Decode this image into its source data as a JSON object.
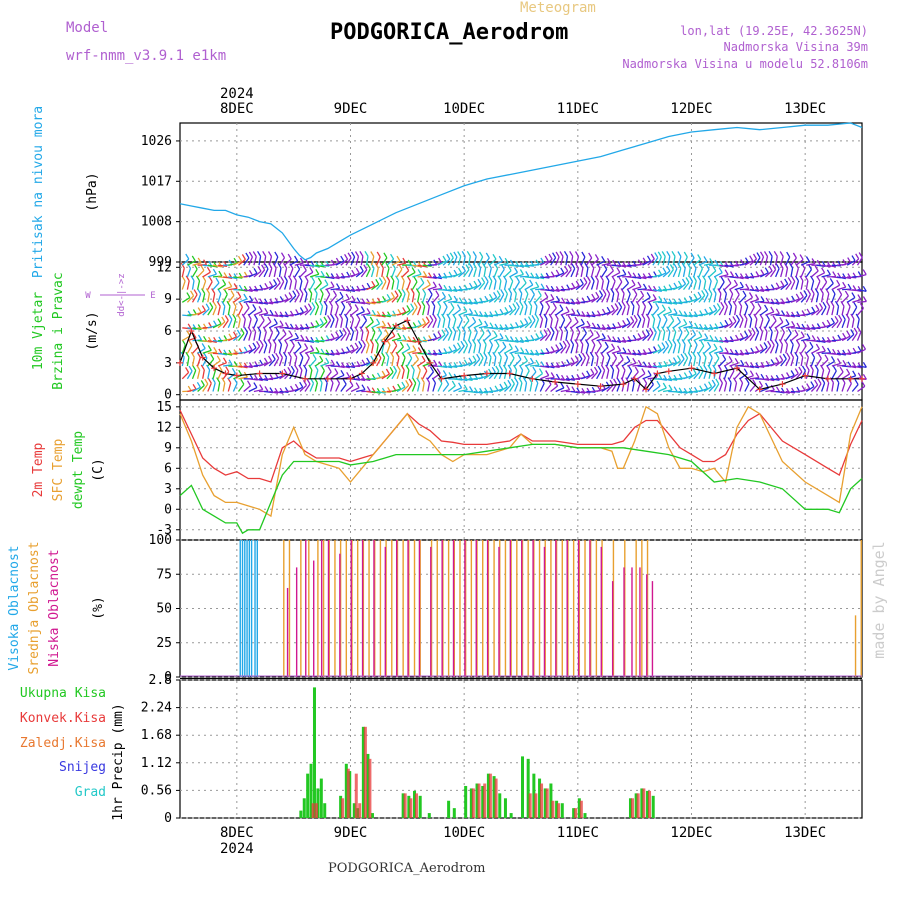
{
  "header": {
    "model_label": "Model",
    "model_value": "wrf-nmm_v3.9.1 e1km",
    "meteogram_label": "Meteogram",
    "station_title": "PODGORICA_Aerodrom",
    "lonlat": "lon,lat (19.25E, 42.3625N)",
    "elevation": "Nadmorska Visina 39m",
    "model_elevation": "Nadmorska Visina u modelu 52.8106m",
    "footer_station": "PODGORICA_Aerodrom",
    "signature": "made by Angel",
    "year_top": "2024",
    "year_bottom": "2024"
  },
  "colors": {
    "pressure": "#22a8e8",
    "temp2m": "#e83a3a",
    "sfc": "#e8a030",
    "dewpt": "#22c822",
    "high_cloud": "#22a8e8",
    "mid_cloud": "#e8a030",
    "low_cloud": "#d01890",
    "total_precip": "#22c822",
    "conv_precip": "#e83a3a",
    "frozen": "#e87830",
    "snow": "#3838e0",
    "grad": "#22c8c8",
    "wind_purple": "#8a22c8",
    "wind_blue": "#2828d8",
    "grid": "#999999"
  },
  "chart_data": [
    {
      "type": "line",
      "panel": "pressure",
      "ylabel_lines": [
        "Pritisak na nivou mora",
        "(hPa)"
      ],
      "x_ticks": [
        "8DEC",
        "9DEC",
        "10DEC",
        "11DEC",
        "12DEC",
        "13DEC"
      ],
      "yticks": [
        999,
        1008,
        1017,
        1026
      ],
      "ylim": [
        999,
        1030
      ],
      "x_range_days": [
        7.5,
        13.5
      ],
      "series": [
        {
          "x": [
            7.5,
            7.6,
            7.7,
            7.8,
            7.9,
            8.0,
            8.1,
            8.2,
            8.3,
            8.4,
            8.5,
            8.55,
            8.6,
            8.65,
            8.7,
            8.8,
            8.9,
            9.0,
            9.2,
            9.4,
            9.6,
            9.8,
            10.0,
            10.2,
            10.4,
            10.6,
            10.8,
            11.0,
            11.2,
            11.4,
            11.6,
            11.8,
            12.0,
            12.2,
            12.4,
            12.6,
            12.8,
            13.0,
            13.2,
            13.4,
            13.5
          ],
          "y": [
            1012,
            1011.5,
            1011,
            1010.5,
            1010.5,
            1009.5,
            1009,
            1008,
            1007.5,
            1005.5,
            1002,
            1000.5,
            999.5,
            1000,
            1001,
            1002,
            1003.5,
            1005,
            1007.5,
            1010,
            1012,
            1014,
            1016,
            1017.5,
            1018.5,
            1019.5,
            1020.5,
            1021.5,
            1022.5,
            1024,
            1025.5,
            1027,
            1028,
            1028.5,
            1029,
            1028.5,
            1029,
            1029.5,
            1029.5,
            1030,
            1029
          ]
        }
      ]
    },
    {
      "type": "scatter",
      "panel": "wind",
      "ylabel_lines": [
        "10m Vjetar",
        "Brzina i Pravac",
        "(m/s)"
      ],
      "compass": {
        "w": "W",
        "e": "E",
        "n": "N",
        "s": "S",
        "axis_note": "dd<-|->z"
      },
      "yticks": [
        0,
        3,
        6,
        9,
        12
      ],
      "ylim": [
        -0.5,
        12.5
      ],
      "speed_series": {
        "x": [
          7.5,
          7.6,
          7.7,
          7.8,
          7.9,
          8.0,
          8.2,
          8.4,
          8.6,
          8.8,
          9.0,
          9.1,
          9.2,
          9.3,
          9.4,
          9.5,
          9.6,
          9.7,
          9.8,
          10.0,
          10.2,
          10.4,
          10.6,
          10.8,
          11.0,
          11.2,
          11.4,
          11.5,
          11.6,
          11.7,
          11.8,
          12.0,
          12.2,
          12.4,
          12.6,
          12.8,
          13.0,
          13.2,
          13.4,
          13.5
        ],
        "y": [
          3,
          6,
          3.5,
          2.5,
          2,
          1.8,
          2,
          2,
          1.5,
          1.5,
          1.5,
          2,
          3,
          5,
          6.5,
          7,
          5,
          3,
          1.5,
          1.8,
          2,
          2,
          1.5,
          1.2,
          1,
          0.8,
          1,
          1.5,
          0.5,
          2,
          2.2,
          2.5,
          2,
          2.5,
          0.5,
          1,
          1.8,
          1.5,
          1.5,
          1.5
        ]
      }
    },
    {
      "type": "line",
      "panel": "temperature",
      "ylabel_lines": [
        "2m Temp",
        "SFC Temp",
        "dewpt Temp",
        "(C)"
      ],
      "yticks": [
        -3,
        0,
        3,
        6,
        9,
        12,
        15
      ],
      "ylim": [
        -4.5,
        16
      ],
      "series": [
        {
          "name": "2m Temp",
          "x": [
            7.5,
            7.6,
            7.7,
            7.8,
            7.9,
            8.0,
            8.1,
            8.2,
            8.3,
            8.4,
            8.5,
            8.6,
            8.7,
            8.8,
            8.9,
            9.0,
            9.1,
            9.2,
            9.3,
            9.4,
            9.5,
            9.6,
            9.7,
            9.8,
            9.9,
            10.0,
            10.2,
            10.4,
            10.5,
            10.6,
            10.8,
            11.0,
            11.2,
            11.3,
            11.4,
            11.5,
            11.6,
            11.7,
            11.8,
            11.9,
            12.0,
            12.1,
            12.2,
            12.3,
            12.4,
            12.5,
            12.6,
            12.8,
            13.0,
            13.2,
            13.3,
            13.4,
            13.5
          ],
          "y": [
            14.5,
            11,
            7.5,
            6,
            5,
            5.5,
            4.5,
            4.5,
            4,
            9,
            10,
            8.5,
            7.5,
            7.5,
            7.5,
            7,
            7.5,
            8,
            10,
            12,
            14,
            12.5,
            11.5,
            10,
            9.8,
            9.5,
            9.5,
            10,
            11,
            10,
            10,
            9.5,
            9.5,
            9.5,
            10,
            12,
            13,
            13,
            11,
            9,
            8,
            7,
            7,
            8,
            11,
            13,
            14,
            10,
            8,
            6,
            5,
            9.5,
            13
          ]
        },
        {
          "name": "SFC Temp",
          "x": [
            7.5,
            7.6,
            7.7,
            7.8,
            7.9,
            8.0,
            8.1,
            8.2,
            8.3,
            8.4,
            8.5,
            8.6,
            8.7,
            8.8,
            8.9,
            9.0,
            9.1,
            9.2,
            9.3,
            9.4,
            9.5,
            9.6,
            9.7,
            9.8,
            9.9,
            10.0,
            10.2,
            10.4,
            10.5,
            10.6,
            10.8,
            11.0,
            11.2,
            11.3,
            11.35,
            11.4,
            11.5,
            11.6,
            11.7,
            11.8,
            11.9,
            12.0,
            12.1,
            12.2,
            12.3,
            12.4,
            12.5,
            12.6,
            12.8,
            13.0,
            13.2,
            13.3,
            13.4,
            13.5
          ],
          "y": [
            14,
            10,
            5,
            2,
            1,
            1,
            0.5,
            0,
            -1,
            8,
            12,
            8,
            7,
            6.5,
            6,
            4,
            6,
            8,
            10,
            12,
            14,
            11,
            10,
            8,
            7,
            8,
            8,
            9,
            11,
            9.5,
            9.5,
            9,
            9,
            8.5,
            6,
            6,
            10,
            15,
            14,
            9,
            6,
            6,
            5.5,
            6,
            4,
            12,
            15,
            14,
            7,
            4,
            2,
            1,
            11,
            15
          ]
        },
        {
          "name": "dewpt Temp",
          "x": [
            7.5,
            7.6,
            7.7,
            7.8,
            7.9,
            8.0,
            8.05,
            8.1,
            8.2,
            8.3,
            8.4,
            8.5,
            8.6,
            8.7,
            8.8,
            8.9,
            9.0,
            9.2,
            9.4,
            9.6,
            9.8,
            10.0,
            10.2,
            10.4,
            10.6,
            10.8,
            11.0,
            11.2,
            11.4,
            11.6,
            11.8,
            12.0,
            12.2,
            12.4,
            12.6,
            12.8,
            13.0,
            13.2,
            13.3,
            13.4,
            13.5
          ],
          "y": [
            2,
            3.5,
            0,
            -1,
            -2,
            -2,
            -3.5,
            -3,
            -3,
            1,
            5,
            7,
            7,
            7,
            7,
            7,
            6.5,
            7,
            8,
            8,
            8,
            8,
            8.5,
            9,
            9.5,
            9.5,
            9,
            9,
            9,
            8.5,
            8,
            7,
            4,
            4.5,
            4,
            3,
            0,
            0,
            -0.5,
            3,
            4.5
          ]
        }
      ]
    },
    {
      "type": "bar",
      "panel": "clouds",
      "ylabel_lines": [
        "Visoka Oblacnost",
        "Srednja Oblacnost",
        "Niska Oblacnost",
        "(%)"
      ],
      "yticks": [
        0,
        25,
        50,
        75,
        100
      ],
      "ylim": [
        0,
        100
      ],
      "series": [
        {
          "name": "Visoka Oblacnost",
          "x": [
            8.03,
            8.05,
            8.07,
            8.09,
            8.11,
            8.13,
            8.16,
            8.18
          ],
          "values": [
            100,
            100,
            100,
            100,
            100,
            100,
            100,
            100
          ]
        },
        {
          "name": "Srednja Oblacnost",
          "x": [
            8.4,
            8.45,
            8.55,
            8.62,
            8.7,
            8.75,
            8.8,
            8.85,
            8.9,
            8.95,
            9.0,
            9.05,
            9.1,
            9.15,
            9.2,
            9.25,
            9.3,
            9.35,
            9.4,
            9.45,
            9.5,
            9.55,
            9.6,
            9.7,
            9.75,
            9.8,
            9.85,
            9.9,
            9.95,
            10.0,
            10.05,
            10.1,
            10.15,
            10.2,
            10.25,
            10.3,
            10.35,
            10.4,
            10.45,
            10.5,
            10.55,
            10.6,
            10.65,
            10.7,
            10.75,
            10.8,
            10.85,
            10.9,
            10.95,
            11.0,
            11.05,
            11.1,
            11.15,
            11.2,
            11.3,
            11.4,
            11.5,
            11.55,
            11.6,
            13.43,
            13.48
          ],
          "values": [
            100,
            100,
            100,
            100,
            100,
            100,
            100,
            100,
            100,
            100,
            100,
            100,
            100,
            100,
            100,
            100,
            100,
            100,
            100,
            100,
            100,
            100,
            100,
            100,
            100,
            100,
            100,
            100,
            100,
            100,
            100,
            100,
            100,
            100,
            100,
            100,
            100,
            100,
            100,
            100,
            100,
            100,
            100,
            100,
            100,
            100,
            100,
            100,
            100,
            100,
            100,
            100,
            100,
            100,
            100,
            100,
            100,
            100,
            100,
            45,
            100
          ]
        },
        {
          "name": "Niska Oblacnost",
          "x": [
            8.42,
            8.5,
            8.58,
            8.65,
            8.72,
            8.78,
            8.88,
            8.98,
            9.08,
            9.18,
            9.28,
            9.38,
            9.48,
            9.58,
            9.68,
            9.78,
            9.88,
            9.98,
            10.08,
            10.18,
            10.28,
            10.38,
            10.48,
            10.58,
            10.68,
            10.78,
            10.88,
            10.98,
            11.08,
            11.18,
            11.28,
            11.38,
            11.45,
            11.52,
            11.58,
            11.63
          ],
          "values": [
            65,
            80,
            100,
            85,
            100,
            100,
            90,
            100,
            100,
            100,
            95,
            100,
            100,
            100,
            95,
            100,
            100,
            100,
            100,
            100,
            95,
            100,
            100,
            100,
            95,
            100,
            100,
            100,
            100,
            95,
            70,
            80,
            80,
            80,
            75,
            70
          ]
        }
      ]
    },
    {
      "type": "bar",
      "panel": "precip",
      "ylabel_lines": [
        "1hr Precip (mm)"
      ],
      "legend": [
        "Ukupna Kisa",
        "Konvek.Kisa",
        "Zaledj.Kisa",
        "Snijeg",
        "Grad"
      ],
      "yticks": [
        0,
        0.56,
        1.12,
        1.68,
        2.24,
        2.8
      ],
      "ylim": [
        0,
        2.8
      ],
      "series": [
        {
          "name": "Ukupna Kisa",
          "x": [
            8.55,
            8.58,
            8.61,
            8.64,
            8.67,
            8.7,
            8.73,
            8.76,
            8.9,
            8.95,
            8.98,
            9.02,
            9.05,
            9.1,
            9.14,
            9.18,
            9.45,
            9.5,
            9.55,
            9.6,
            9.68,
            9.85,
            9.9,
            10.0,
            10.05,
            10.1,
            10.15,
            10.2,
            10.25,
            10.3,
            10.35,
            10.4,
            10.5,
            10.55,
            10.6,
            10.65,
            10.7,
            10.75,
            10.8,
            10.85,
            10.95,
            11.0,
            11.05,
            11.45,
            11.5,
            11.55,
            11.6,
            11.65
          ],
          "values": [
            0.15,
            0.4,
            0.9,
            1.1,
            2.65,
            0.6,
            0.8,
            0.3,
            0.45,
            1.1,
            0.95,
            0.3,
            0.2,
            1.85,
            1.3,
            0.1,
            0.5,
            0.45,
            0.55,
            0.45,
            0.1,
            0.35,
            0.2,
            0.65,
            0.6,
            0.7,
            0.65,
            0.9,
            0.85,
            0.5,
            0.4,
            0.1,
            1.25,
            1.2,
            0.9,
            0.8,
            0.6,
            0.7,
            0.35,
            0.3,
            0.2,
            0.4,
            0.1,
            0.4,
            0.5,
            0.6,
            0.55,
            0.45
          ]
        },
        {
          "name": "Konvek.Kisa",
          "x": [
            8.64,
            8.67,
            8.9,
            8.95,
            9.02,
            9.05,
            9.1,
            9.14,
            9.45,
            9.5,
            9.55,
            10.05,
            10.1,
            10.15,
            10.2,
            10.25,
            10.55,
            10.6,
            10.65,
            10.7,
            10.75,
            10.8,
            10.95,
            11.0,
            11.45,
            11.5,
            11.55,
            11.6
          ],
          "values": [
            0.3,
            0.3,
            0.4,
            1.0,
            0.9,
            0.3,
            1.85,
            1.2,
            0.5,
            0.4,
            0.5,
            0.6,
            0.7,
            0.7,
            0.9,
            0.8,
            0.5,
            0.5,
            0.7,
            0.6,
            0.35,
            0.3,
            0.2,
            0.35,
            0.4,
            0.5,
            0.6,
            0.55
          ]
        }
      ]
    }
  ]
}
